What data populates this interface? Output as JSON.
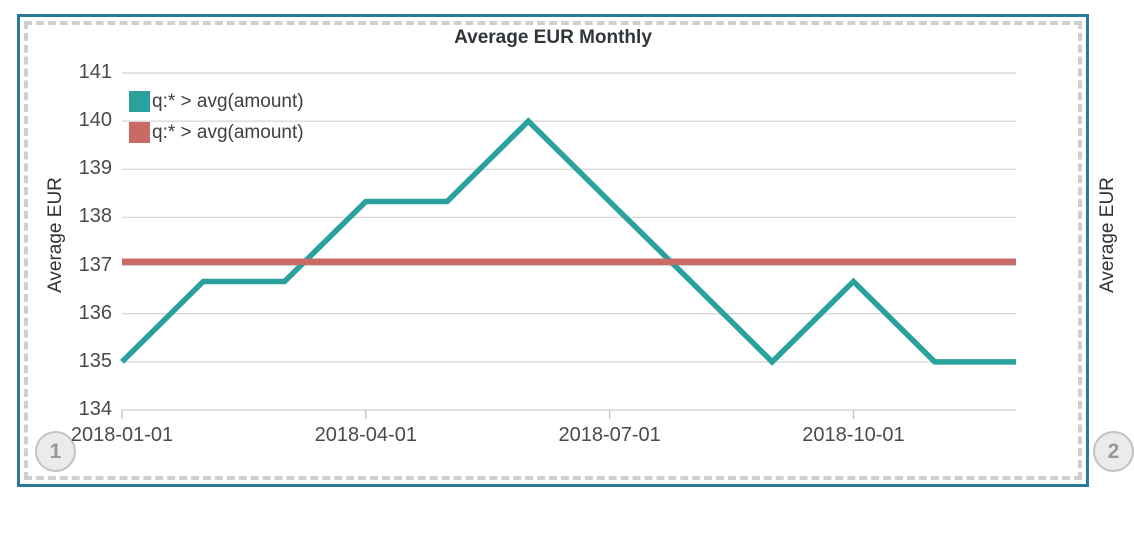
{
  "page": {
    "badges": [
      {
        "label": "1"
      },
      {
        "label": "2"
      }
    ]
  },
  "panel": {
    "title": "Average EUR Monthly",
    "border_color": "#2B7A99"
  },
  "next_panel": {
    "ylabel": "Average EUR"
  },
  "chart_data": {
    "type": "line",
    "title": "Average EUR Monthly",
    "xlabel": "",
    "ylabel": "Average EUR",
    "ylim": [
      134,
      141
    ],
    "yticks": [
      141,
      140,
      139,
      138,
      137,
      136,
      135,
      134
    ],
    "grid": true,
    "legend_position": "top-left",
    "x": [
      "2018-01-01",
      "2018-02-01",
      "2018-03-01",
      "2018-04-01",
      "2018-05-01",
      "2018-06-01",
      "2018-07-01",
      "2018-08-01",
      "2018-09-01",
      "2018-10-01",
      "2018-11-01",
      "2018-12-01"
    ],
    "xtick_labels": [
      "2018-01-01",
      "2018-04-01",
      "2018-07-01",
      "2018-10-01"
    ],
    "xtick_indices": [
      0,
      3,
      6,
      9
    ],
    "series": [
      {
        "name": "q:* > avg(amount)",
        "type": "line",
        "color": "#29A19D",
        "values": [
          135,
          136.67,
          136.67,
          138.33,
          138.33,
          140,
          138.33,
          136.67,
          135,
          136.67,
          135,
          135
        ]
      },
      {
        "name": "q:* > avg(amount)",
        "type": "horizontal-line",
        "color": "#C96A64",
        "value": 137.08
      }
    ],
    "colors": {
      "grid": "#d8d8d8",
      "axis_tick": "#c4c4c4",
      "tick_text": "#4a4a4a"
    }
  }
}
